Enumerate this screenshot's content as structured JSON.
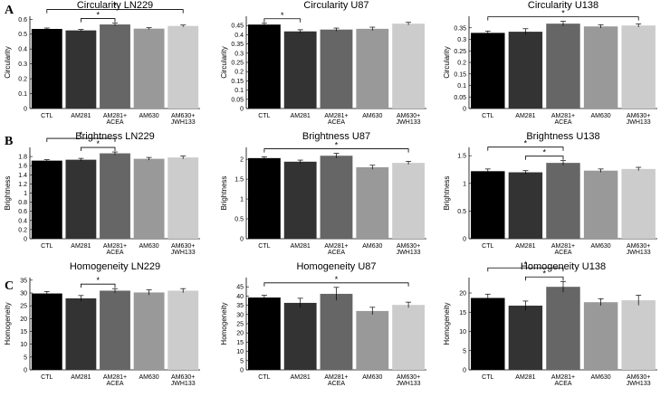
{
  "chart_data": [
    {
      "type": "bar",
      "panel": "A",
      "title": "Circularity LN229",
      "ylabel": "Circularity",
      "categories": [
        "CTL",
        "AM281",
        "AM281+ ACEA",
        "AM630",
        "AM630+ JWH133"
      ],
      "values": [
        0.535,
        0.525,
        0.565,
        0.537,
        0.555
      ],
      "errors": [
        0.006,
        0.006,
        0.009,
        0.006,
        0.006
      ],
      "colors": [
        "#000000",
        "#333333",
        "#666666",
        "#999999",
        "#cccccc"
      ],
      "ylim": [
        0,
        0.62
      ],
      "yticks": [
        "0",
        "0.1",
        "0.2",
        "0.3",
        "0.4",
        "0.5",
        "0.6"
      ],
      "sig": [
        {
          "from": 1,
          "to": 2,
          "label": "*"
        },
        {
          "from": 0,
          "to": 4,
          "label": "*"
        }
      ]
    },
    {
      "type": "bar",
      "panel": "",
      "title": "Circularity U87",
      "ylabel": "Circularity",
      "categories": [
        "CTL",
        "AM281",
        "AM281+ ACEA",
        "AM630",
        "AM630+ JWH133"
      ],
      "values": [
        0.455,
        0.418,
        0.428,
        0.432,
        0.46
      ],
      "errors": [
        0.007,
        0.009,
        0.008,
        0.009,
        0.007
      ],
      "colors": [
        "#000000",
        "#333333",
        "#666666",
        "#999999",
        "#cccccc"
      ],
      "ylim": [
        0,
        0.5
      ],
      "yticks": [
        "0",
        "0.05",
        "0.1",
        "0.15",
        "0.2",
        "0.25",
        "0.3",
        "0.35",
        "0.4",
        "0.45"
      ],
      "sig": [
        {
          "from": 0,
          "to": 1,
          "label": "*"
        }
      ]
    },
    {
      "type": "bar",
      "panel": "",
      "title": "Circularity U138",
      "ylabel": "Circularity",
      "categories": [
        "CTL",
        "AM281",
        "AM281+ ACEA",
        "AM630",
        "AM630+ JWH133"
      ],
      "values": [
        0.328,
        0.333,
        0.368,
        0.356,
        0.36
      ],
      "errors": [
        0.008,
        0.013,
        0.01,
        0.007,
        0.007
      ],
      "colors": [
        "#000000",
        "#333333",
        "#666666",
        "#999999",
        "#cccccc"
      ],
      "ylim": [
        0,
        0.4
      ],
      "yticks": [
        "0",
        "0.05",
        "0.1",
        "0.15",
        "0.2",
        "0.25",
        "0.3",
        "0.35"
      ],
      "sig": [
        {
          "from": 0,
          "to": 4,
          "label": "*"
        }
      ]
    },
    {
      "type": "bar",
      "panel": "B",
      "title": "Brightness LN229",
      "ylabel": "Brightness",
      "categories": [
        "CTL",
        "AM281",
        "AM281+ ACEA",
        "AM630",
        "AM630+ JWH133"
      ],
      "values": [
        1.71,
        1.73,
        1.87,
        1.75,
        1.78
      ],
      "errors": [
        0.02,
        0.03,
        0.03,
        0.03,
        0.03
      ],
      "colors": [
        "#000000",
        "#333333",
        "#666666",
        "#999999",
        "#cccccc"
      ],
      "ylim": [
        0,
        2.0
      ],
      "yticks": [
        "0",
        "0.2",
        "0.4",
        "0.6",
        "0.8",
        "1",
        "1.2",
        "1.4",
        "1.6",
        "1.8"
      ],
      "sig": [
        {
          "from": 1,
          "to": 2,
          "label": "*"
        },
        {
          "from": 0,
          "to": 2,
          "label": "*"
        }
      ]
    },
    {
      "type": "bar",
      "panel": "",
      "title": "Brightness U87",
      "ylabel": "Brightness",
      "categories": [
        "CTL",
        "AM281",
        "AM281+ ACEA",
        "AM630",
        "AM630+ JWH133"
      ],
      "values": [
        2.03,
        1.94,
        2.09,
        1.8,
        1.91
      ],
      "errors": [
        0.03,
        0.04,
        0.06,
        0.05,
        0.04
      ],
      "colors": [
        "#000000",
        "#333333",
        "#666666",
        "#999999",
        "#cccccc"
      ],
      "ylim": [
        0,
        2.3
      ],
      "yticks": [
        "0",
        "0.5",
        "1",
        "1.5",
        "2"
      ],
      "sig": [
        {
          "from": 0,
          "to": 4,
          "label": "*"
        }
      ]
    },
    {
      "type": "bar",
      "panel": "",
      "title": "Brightness U138",
      "ylabel": "Brightness",
      "categories": [
        "CTL",
        "AM281",
        "AM281+ ACEA",
        "AM630",
        "AM630+ JWH133"
      ],
      "values": [
        1.22,
        1.2,
        1.37,
        1.23,
        1.26
      ],
      "errors": [
        0.04,
        0.03,
        0.04,
        0.03,
        0.03
      ],
      "colors": [
        "#000000",
        "#333333",
        "#666666",
        "#999999",
        "#cccccc"
      ],
      "ylim": [
        0,
        1.65
      ],
      "yticks": [
        "0",
        "0.5",
        "1",
        "1.5"
      ],
      "sig": [
        {
          "from": 1,
          "to": 2,
          "label": "*"
        },
        {
          "from": 0,
          "to": 2,
          "label": "*"
        }
      ]
    },
    {
      "type": "bar",
      "panel": "C",
      "title": "Homogeneity LN229",
      "ylabel": "Homogeneity",
      "categories": [
        "CTL",
        "AM281",
        "AM281+ ACEA",
        "AM630",
        "AM630+ JWH133"
      ],
      "values": [
        29.8,
        27.9,
        30.9,
        30.2,
        30.9
      ],
      "errors": [
        0.8,
        1.1,
        0.8,
        1.0,
        0.8
      ],
      "colors": [
        "#000000",
        "#333333",
        "#666666",
        "#999999",
        "#cccccc"
      ],
      "ylim": [
        0,
        36
      ],
      "yticks": [
        "0",
        "5",
        "10",
        "15",
        "20",
        "25",
        "30",
        "35"
      ],
      "sig": [
        {
          "from": 1,
          "to": 2,
          "label": "*"
        }
      ]
    },
    {
      "type": "bar",
      "panel": "",
      "title": "Homogeneity U87",
      "ylabel": "Homogeneity",
      "categories": [
        "CTL",
        "AM281",
        "AM281+ ACEA",
        "AM630",
        "AM630+ JWH133"
      ],
      "values": [
        39.2,
        36.3,
        41.2,
        31.9,
        35.2
      ],
      "errors": [
        1.2,
        2.5,
        3.5,
        2.0,
        1.5
      ],
      "colors": [
        "#000000",
        "#333333",
        "#666666",
        "#999999",
        "#cccccc"
      ],
      "ylim": [
        0,
        50
      ],
      "yticks": [
        "0",
        "5",
        "10",
        "15",
        "20",
        "25",
        "30",
        "35",
        "40",
        "45"
      ],
      "sig": [
        {
          "from": 0,
          "to": 4,
          "label": "*"
        }
      ]
    },
    {
      "type": "bar",
      "panel": "",
      "title": "Homogeneity U138",
      "ylabel": "Homogeneity",
      "categories": [
        "CTL",
        "AM281",
        "AM281+ ACEA",
        "AM630",
        "AM630+ JWH133"
      ],
      "values": [
        18.7,
        16.7,
        21.6,
        17.6,
        18.1
      ],
      "errors": [
        1.0,
        1.2,
        1.4,
        0.9,
        1.3
      ],
      "colors": [
        "#000000",
        "#333333",
        "#666666",
        "#999999",
        "#cccccc"
      ],
      "ylim": [
        0,
        24
      ],
      "yticks": [
        "0",
        "5",
        "10",
        "15",
        "20"
      ],
      "sig": [
        {
          "from": 1,
          "to": 2,
          "label": "*"
        },
        {
          "from": 0,
          "to": 2,
          "label": "*"
        }
      ]
    }
  ]
}
